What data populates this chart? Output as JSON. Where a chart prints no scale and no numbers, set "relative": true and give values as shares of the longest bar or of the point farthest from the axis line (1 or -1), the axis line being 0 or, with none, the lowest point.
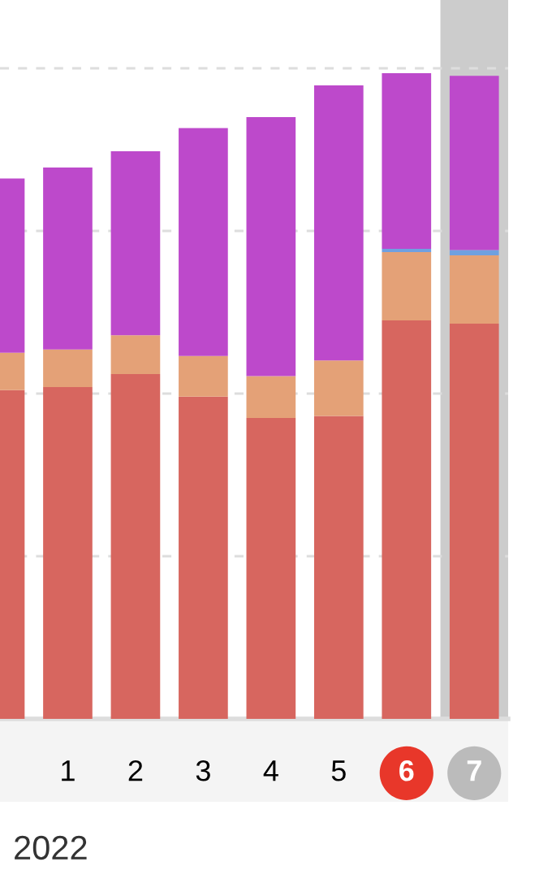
{
  "chart_data": {
    "type": "bar",
    "stacked": true,
    "relative": true,
    "grid": "y",
    "categories": [
      null,
      "1",
      "2",
      "3",
      "4",
      "5",
      "6",
      "7"
    ],
    "series": [
      {
        "color": "#d7665f",
        "values": [
          0.509,
          0.514,
          0.534,
          0.499,
          0.466,
          0.469,
          0.617,
          0.612
        ]
      },
      {
        "color": "#e4a177",
        "values": [
          0.058,
          0.058,
          0.06,
          0.063,
          0.065,
          0.086,
          0.106,
          0.106
        ]
      },
      {
        "color": "#6fa0e0",
        "values": [
          0,
          0,
          0,
          0,
          0,
          0,
          0.005,
          0.008
        ]
      },
      {
        "color": "#bd49cb",
        "values": [
          0.27,
          0.282,
          0.285,
          0.353,
          0.401,
          0.426,
          0.272,
          0.27
        ]
      }
    ],
    "bands": [
      {
        "axis": "x",
        "from": "7",
        "to": "7",
        "color": "#cccccc"
      }
    ],
    "annotations": [
      "2022"
    ]
  }
}
